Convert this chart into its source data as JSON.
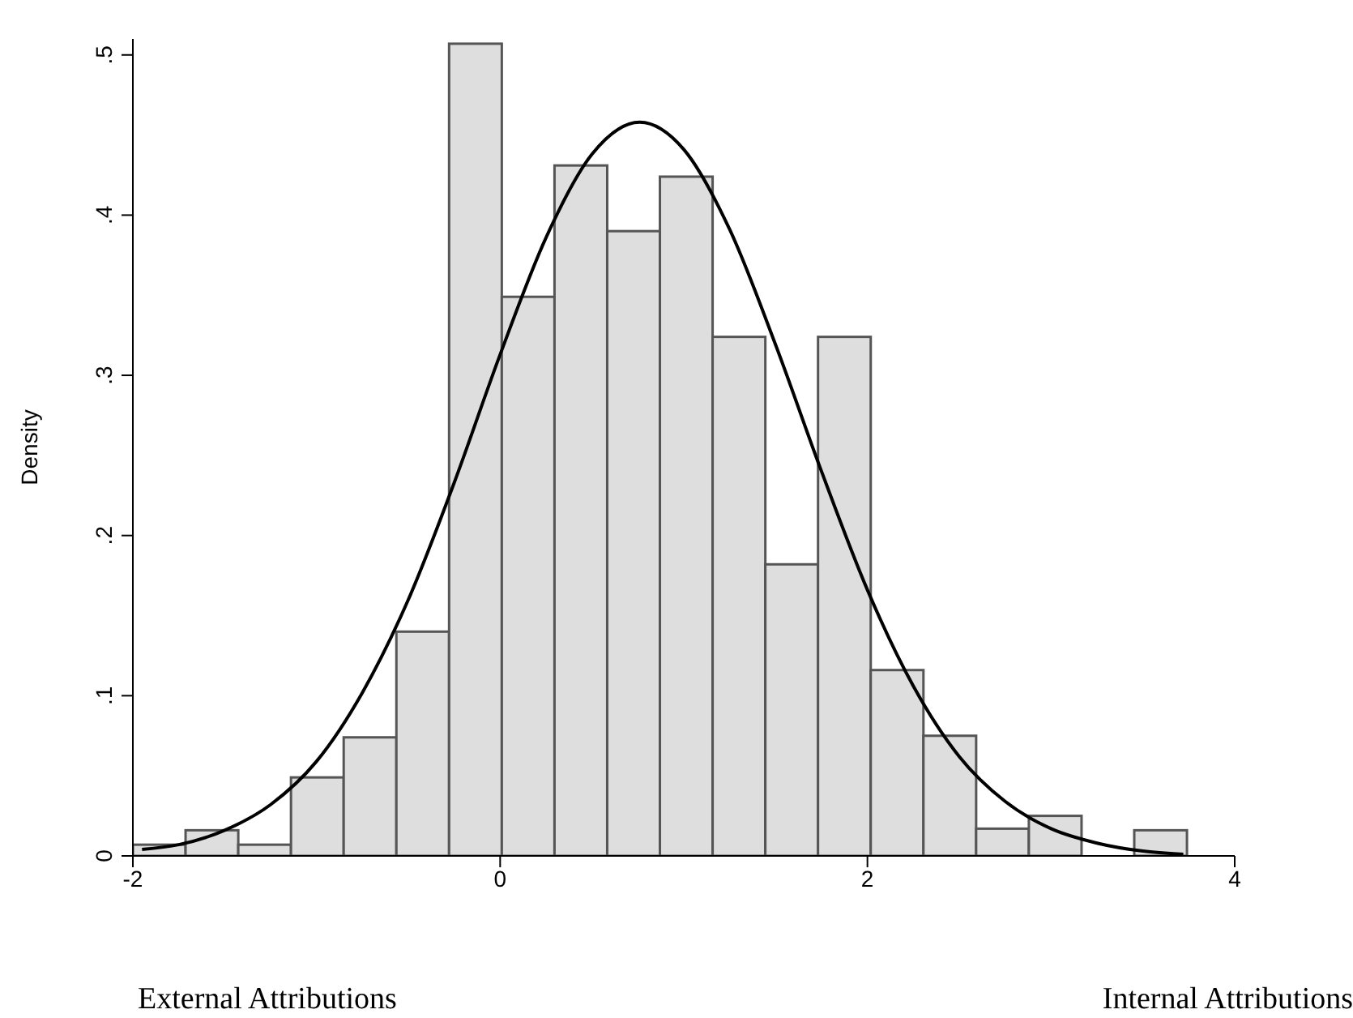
{
  "chart_data": {
    "type": "histogram",
    "ylabel": "Density",
    "bins": [
      -2,
      -1.713,
      -1.426,
      -1.139,
      -0.852,
      -0.565,
      -0.278,
      0.009,
      0.296,
      0.583,
      0.87,
      1.157,
      1.444,
      1.731,
      2.018,
      2.305,
      2.592,
      2.879,
      3.166,
      3.453,
      3.74
    ],
    "values": [
      0.007,
      0.016,
      0.007,
      0.049,
      0.074,
      0.14,
      0.507,
      0.349,
      0.431,
      0.39,
      0.424,
      0.324,
      0.182,
      0.324,
      0.116,
      0.075,
      0.017,
      0.025,
      0,
      0.016
    ],
    "color": "#dedede",
    "series": [
      {
        "type": "line",
        "color": "#000000",
        "x": [
          -1.95,
          -1.75,
          -1.5,
          -1.25,
          -1,
          -0.75,
          -0.5,
          -0.25,
          0,
          0.25,
          0.5,
          0.76,
          1,
          1.25,
          1.5,
          1.75,
          2,
          2.25,
          2.5,
          2.75,
          3,
          3.25,
          3.5,
          3.72
        ],
        "values": [
          0.004,
          0.007,
          0.016,
          0.032,
          0.059,
          0.102,
          0.16,
          0.233,
          0.313,
          0.386,
          0.438,
          0.458,
          0.441,
          0.391,
          0.319,
          0.24,
          0.166,
          0.106,
          0.062,
          0.034,
          0.017,
          0.008,
          0.003,
          0.001
        ]
      }
    ],
    "xlim": [
      -2,
      4
    ],
    "xticks": [
      -2,
      0,
      2,
      4
    ],
    "ylim": [
      0,
      0.51
    ],
    "yticks": [
      {
        "value": 0,
        "label": "0"
      },
      {
        "value": 0.1,
        "label": ".1"
      },
      {
        "value": 0.2,
        "label": ".2"
      },
      {
        "value": 0.3,
        "label": ".3"
      },
      {
        "value": 0.4,
        "label": ".4"
      },
      {
        "value": 0.5,
        "label": ".5"
      }
    ],
    "grid": false,
    "legend": false,
    "annotations": [
      "External Attributions",
      "Internal Attributions"
    ]
  }
}
